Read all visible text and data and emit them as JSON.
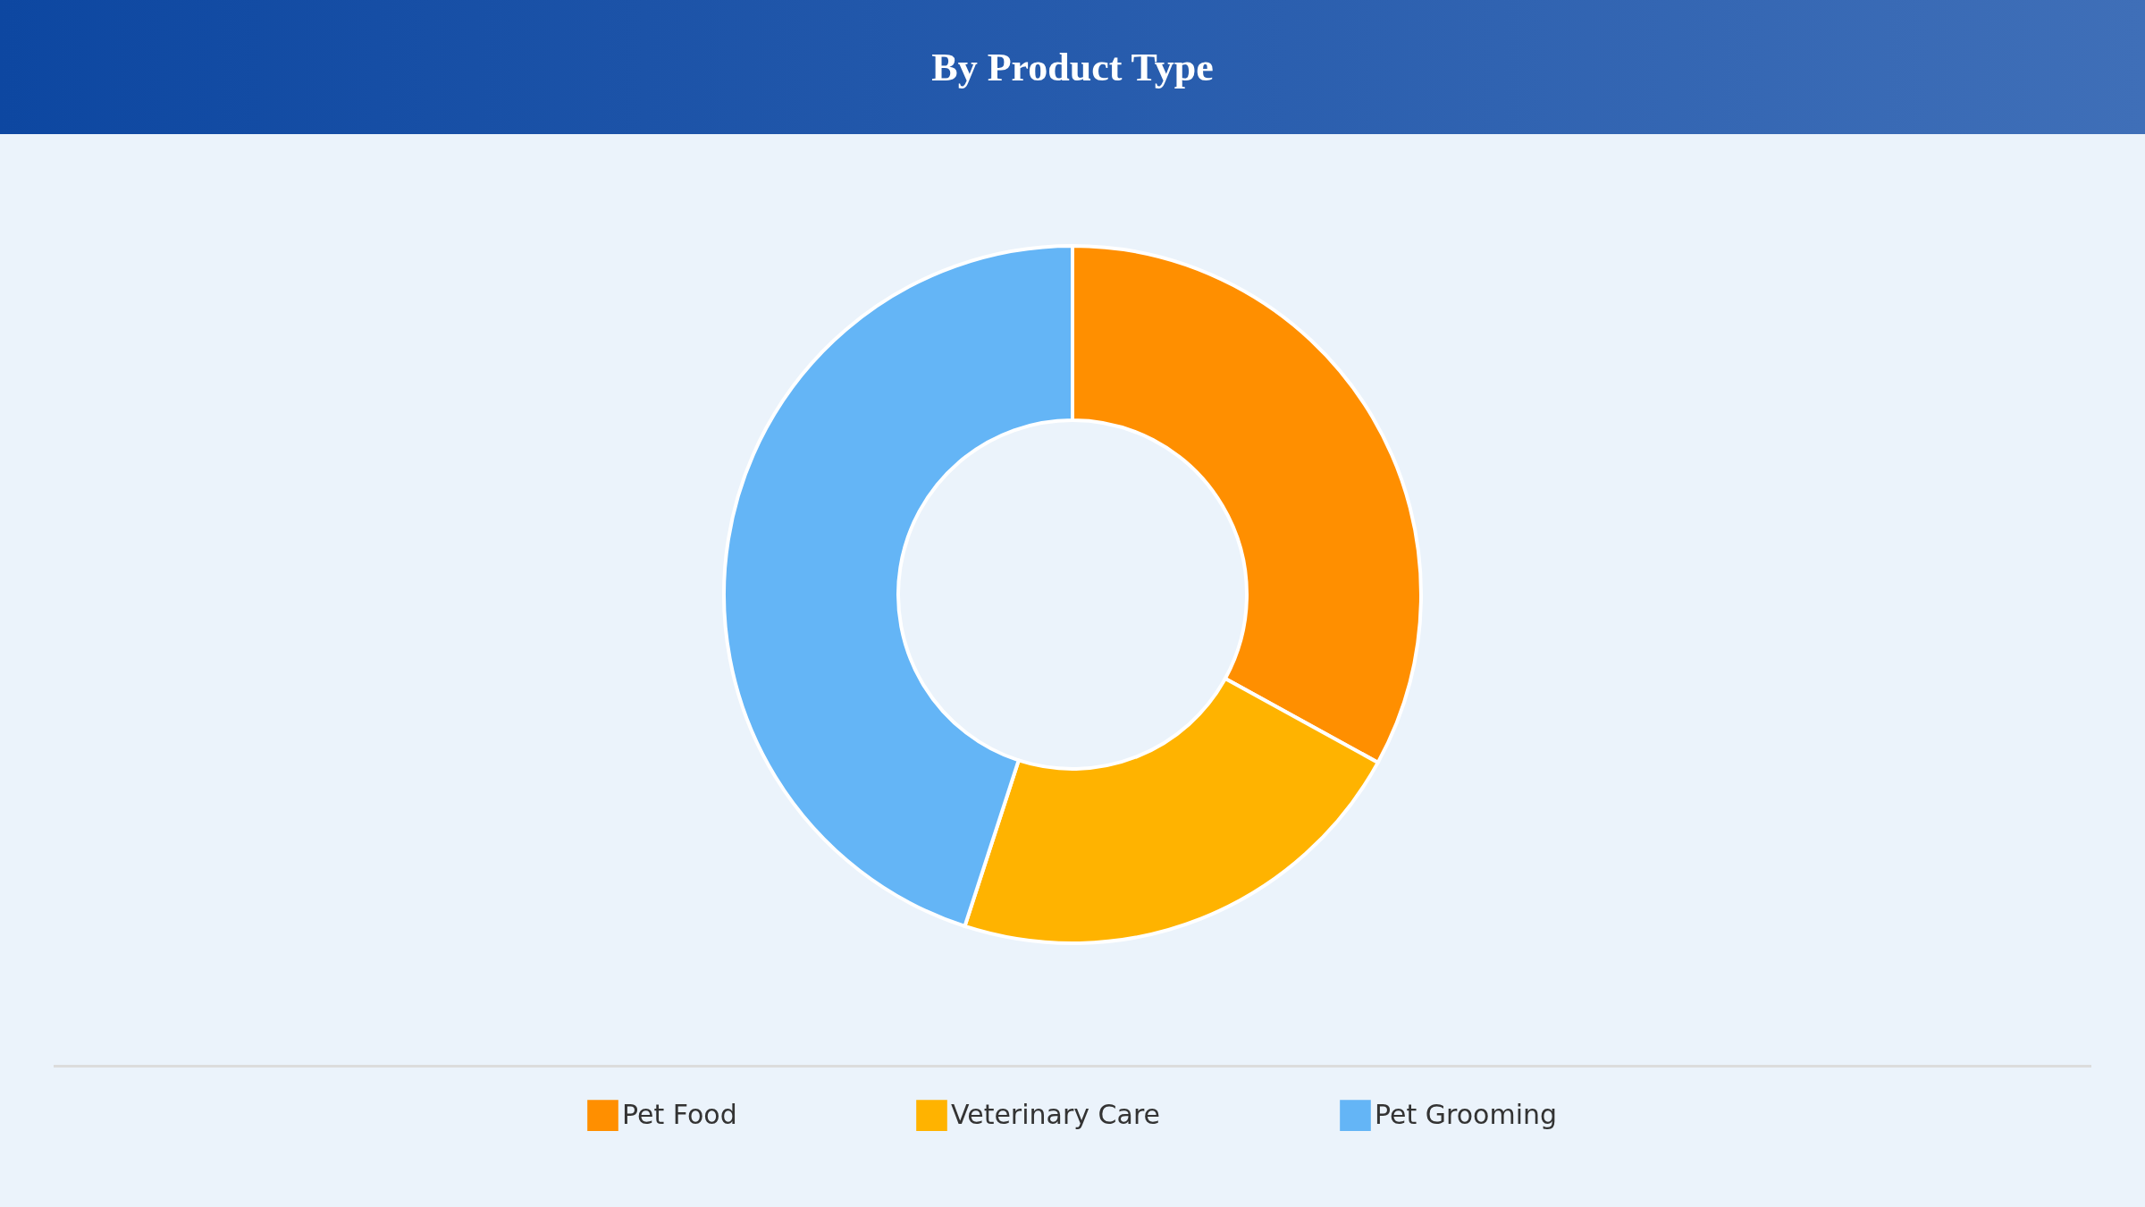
{
  "chart_data": {
    "type": "donut",
    "title": "By Product Type",
    "categories": [
      "Pet Food",
      "Veterinary Care",
      "Pet Grooming"
    ],
    "values": [
      33,
      22,
      45
    ],
    "colors": [
      "#ff8f00",
      "#ffb300",
      "#64b5f6"
    ],
    "legend": "bottom"
  }
}
